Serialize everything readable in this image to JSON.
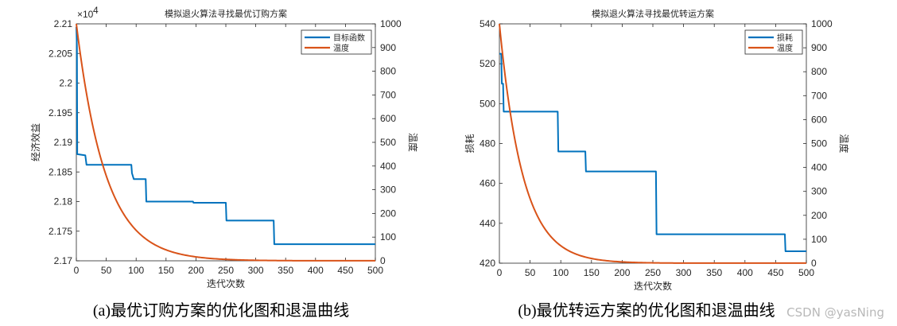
{
  "chart_data": [
    {
      "type": "line",
      "title": "模拟退火算法寻找最优订购方案",
      "xlabel": "迭代次数",
      "ylabel": "经济效益",
      "y2label": "温度",
      "exponent_label": "×10",
      "exponent_power": "4",
      "caption": "(a)最优订购方案的优化图和退温曲线",
      "xlim": [
        0,
        500
      ],
      "ylim": [
        21700,
        22100
      ],
      "y2lim": [
        0,
        1000
      ],
      "xticks": [
        "0",
        "50",
        "100",
        "150",
        "200",
        "250",
        "300",
        "350",
        "400",
        "450",
        "500"
      ],
      "yticks": [
        "2.17",
        "2.175",
        "2.18",
        "2.185",
        "2.19",
        "2.195",
        "2.2",
        "2.205",
        "2.21"
      ],
      "y2ticks": [
        "0",
        "100",
        "200",
        "300",
        "400",
        "500",
        "600",
        "700",
        "800",
        "900",
        "1000"
      ],
      "legend": [
        "目标函数",
        "温度"
      ],
      "legend_position": "top-right",
      "series": [
        {
          "name": "目标函数",
          "axis": "left",
          "color": "#0072BD",
          "step": true,
          "points": [
            [
              0,
              22095
            ],
            [
              1,
              22060
            ],
            [
              1.5,
              21880
            ],
            [
              15,
              21878
            ],
            [
              17,
              21862
            ],
            [
              92,
              21862
            ],
            [
              93,
              21848
            ],
            [
              96,
              21838
            ],
            [
              116,
              21838
            ],
            [
              117,
              21800
            ],
            [
              195,
              21800
            ],
            [
              196,
              21798
            ],
            [
              250,
              21798
            ],
            [
              251,
              21768
            ],
            [
              330,
              21768
            ],
            [
              331,
              21728
            ],
            [
              500,
              21728
            ]
          ]
        },
        {
          "name": "温度",
          "axis": "right",
          "color": "#D95319",
          "decay": 0.0205,
          "t0": 1000,
          "tmin": 0.5,
          "x_max": 500
        }
      ]
    },
    {
      "type": "line",
      "title": "模拟退火算法寻找最优转运方案",
      "xlabel": "迭代次数",
      "ylabel": "损耗",
      "y2label": "温度",
      "caption": "(b)最优转运方案的优化图和退温曲线",
      "xlim": [
        0,
        500
      ],
      "ylim": [
        420,
        540
      ],
      "y2lim": [
        0,
        1000
      ],
      "xticks": [
        "0",
        "50",
        "100",
        "150",
        "200",
        "250",
        "300",
        "350",
        "400",
        "450",
        "500"
      ],
      "yticks": [
        "420",
        "440",
        "460",
        "480",
        "500",
        "520",
        "540"
      ],
      "y2ticks": [
        "0",
        "100",
        "200",
        "300",
        "400",
        "500",
        "600",
        "700",
        "800",
        "900",
        "1000"
      ],
      "legend": [
        "损耗",
        "温度"
      ],
      "legend_position": "top-right",
      "series": [
        {
          "name": "损耗",
          "axis": "left",
          "color": "#0072BD",
          "step": true,
          "points": [
            [
              0,
              525
            ],
            [
              3,
              525
            ],
            [
              4,
              510
            ],
            [
              6,
              510
            ],
            [
              7,
              496
            ],
            [
              95,
              496
            ],
            [
              96,
              476
            ],
            [
              140,
              476
            ],
            [
              141,
              466
            ],
            [
              255,
              466
            ],
            [
              256,
              434.5
            ],
            [
              465,
              434.5
            ],
            [
              466,
              426
            ],
            [
              500,
              426
            ]
          ]
        },
        {
          "name": "温度",
          "axis": "right",
          "color": "#D95319",
          "decay": 0.0262,
          "t0": 1000,
          "tmin": 0.5,
          "x_max": 500
        }
      ]
    }
  ],
  "watermark": "CSDN @yasNing"
}
